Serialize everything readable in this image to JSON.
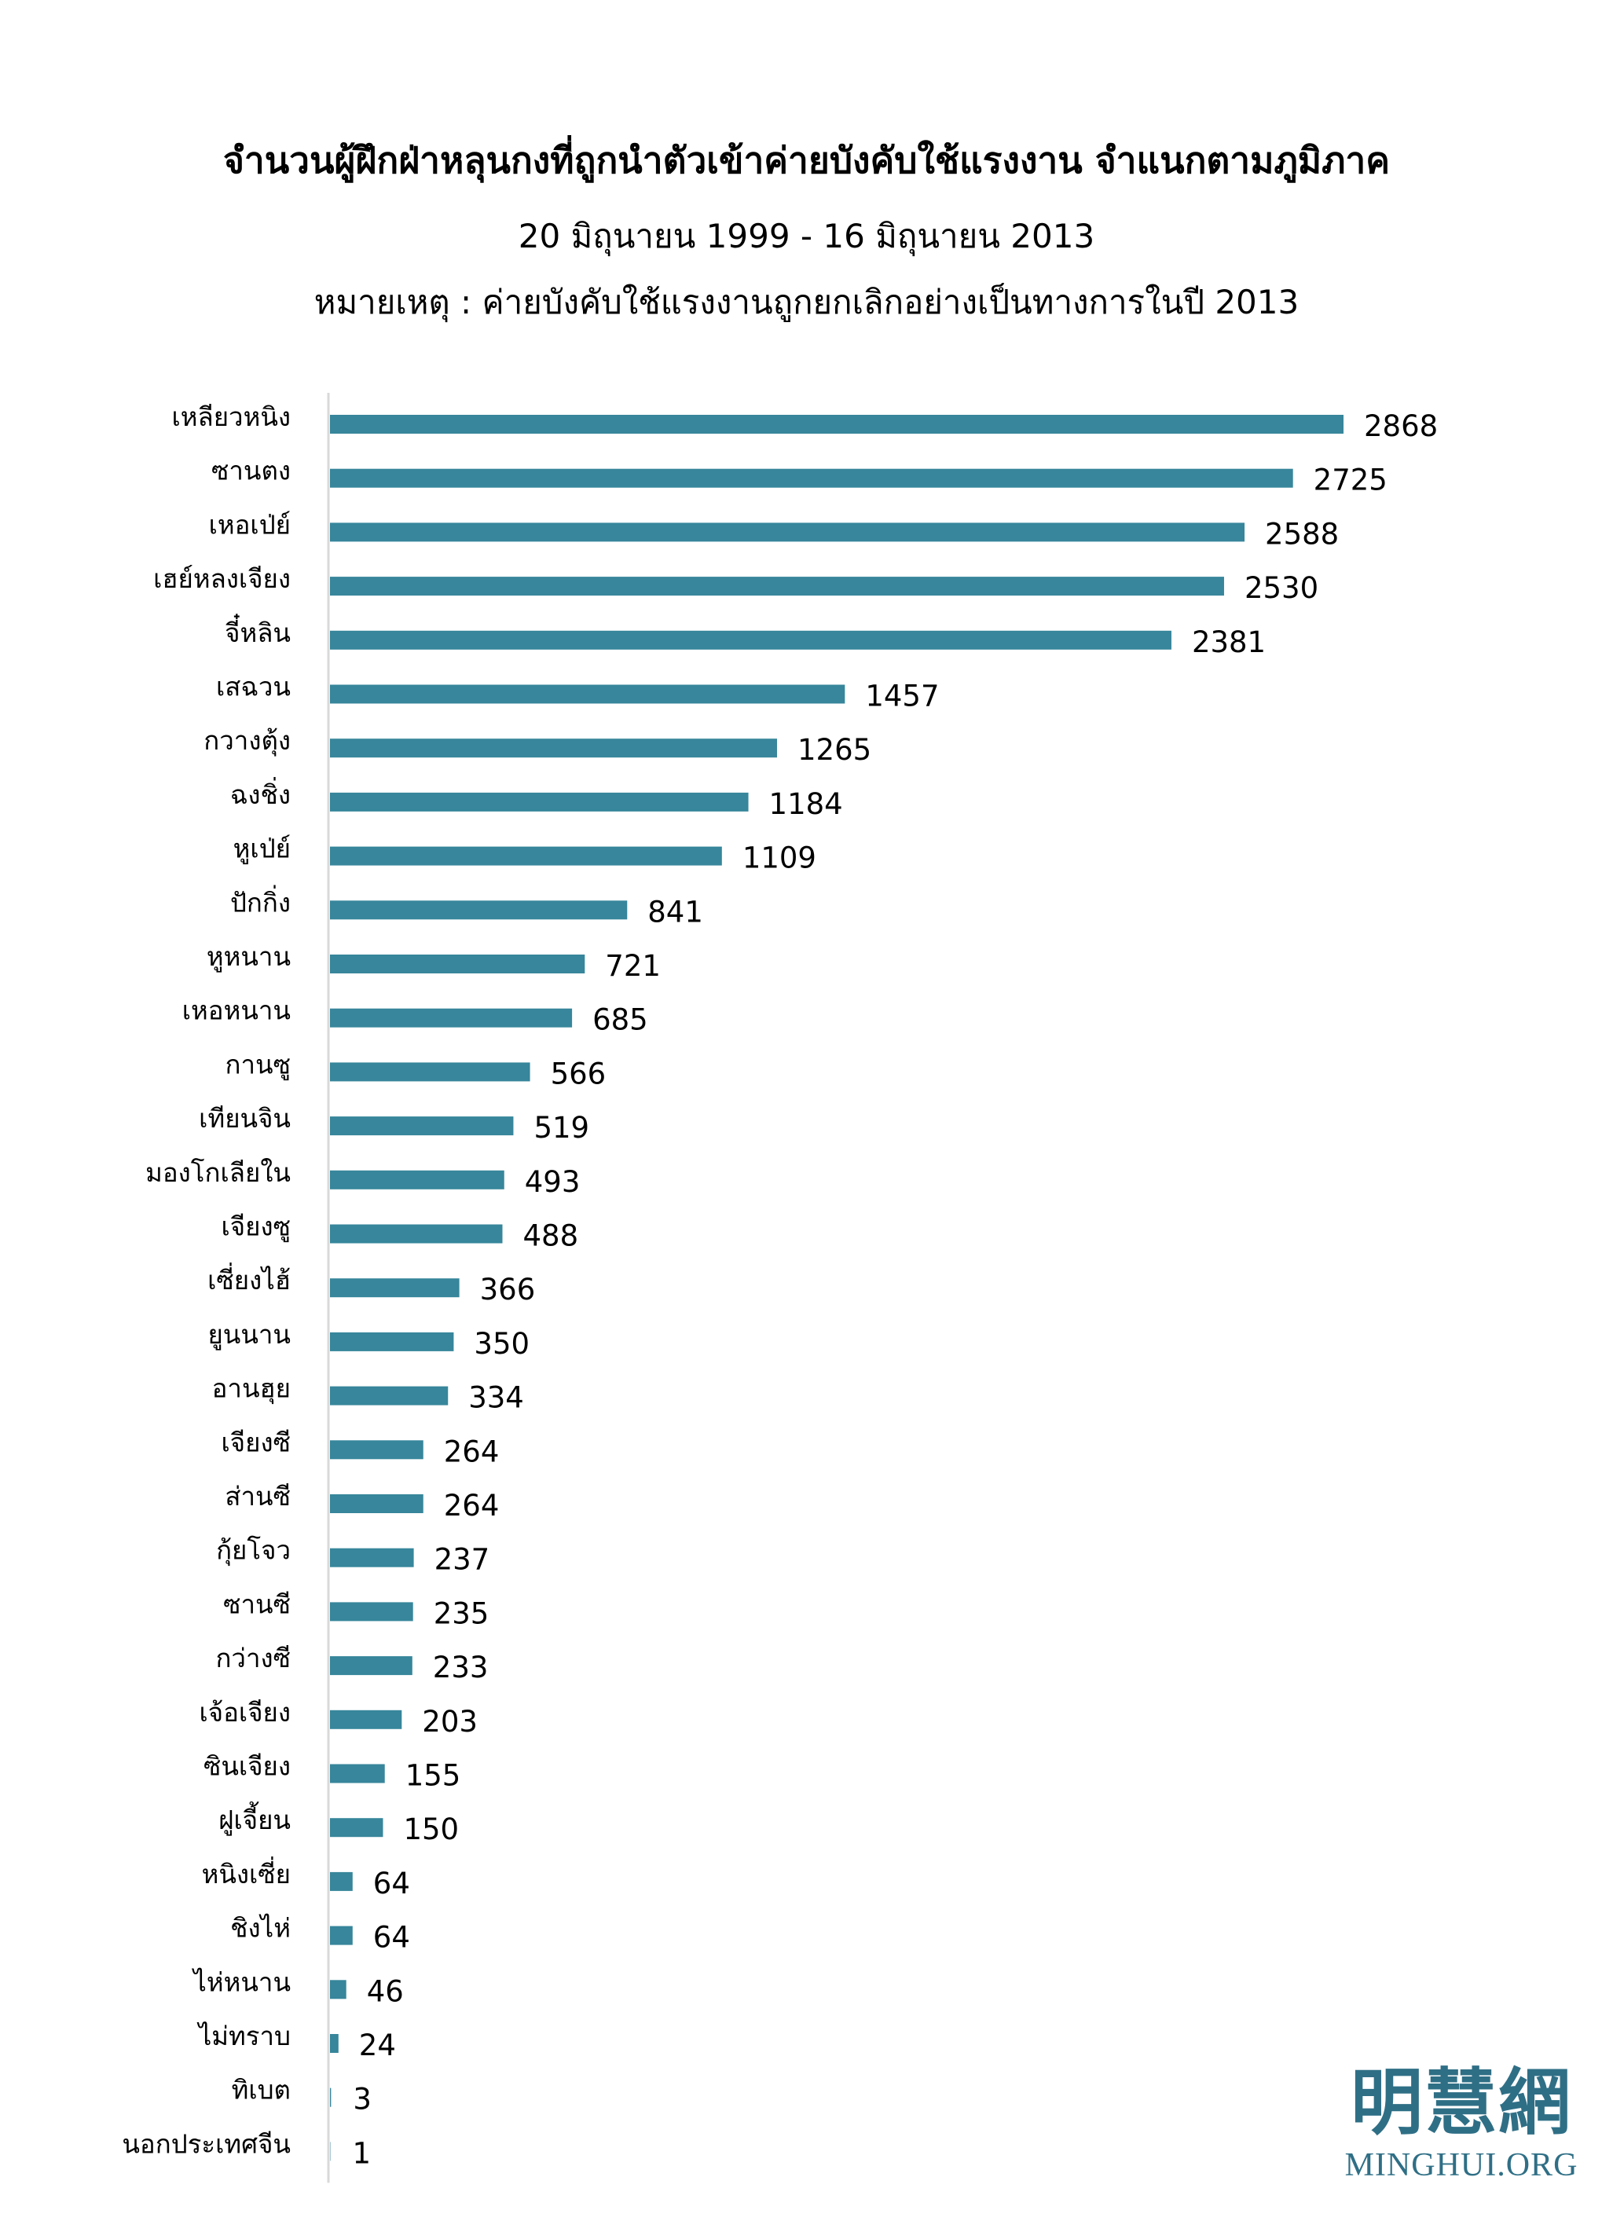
{
  "chart_data": {
    "type": "bar",
    "orientation": "horizontal",
    "title": "จำนวนผู้ฝึกฝ่าหลุนกงที่ถูกนำตัวเข้าค่ายบังคับใช้แรงงาน จำแนกตามภูมิภาค",
    "subtitle": "20 มิถุนายน 1999 - 16 มิถุนายน 2013",
    "note": "หมายเหตุ : ค่ายบังคับใช้แรงงานถูกยกเลิกอย่างเป็นทางการในปี 2013",
    "xlabel": "",
    "ylabel": "",
    "xlim": [
      0,
      2868
    ],
    "grid": false,
    "legend": "none",
    "bar_color": "#37869b",
    "data_labels": true,
    "categories": [
      "เหลียวหนิง",
      "ซานตง",
      "เหอเป่ย์",
      "เฮย์หลงเจียง",
      "จี๋หลิน",
      "เสฉวน",
      "กวางตุ้ง",
      "ฉงชิ่ง",
      "หูเป่ย์",
      "ปักกิ่ง",
      "หูหนาน",
      "เหอหนาน",
      "กานซู",
      "เทียนจิน",
      "มองโกเลียใน",
      "เจียงซู",
      "เซี่ยงไฮ้",
      "ยูนนาน",
      "อานฮุย",
      "เจียงซี",
      "ส่านซี",
      "กุ้ยโจว",
      "ซานซี",
      "กว่างซี",
      "เจ้อเจียง",
      "ซินเจียง",
      "ฝูเจี้ยน",
      "หนิงเซี่ย",
      "ชิงไห่",
      "ไห่หนาน",
      "ไม่ทราบ",
      "ทิเบต",
      "นอกประเทศจีน"
    ],
    "values": [
      2868,
      2725,
      2588,
      2530,
      2381,
      1457,
      1265,
      1184,
      1109,
      841,
      721,
      685,
      566,
      519,
      493,
      488,
      366,
      350,
      334,
      264,
      264,
      237,
      235,
      233,
      203,
      155,
      150,
      64,
      64,
      46,
      24,
      3,
      1
    ]
  },
  "logo": {
    "cjk": "明慧網",
    "en": "MINGHUI.ORG",
    "color": "#2f6f86"
  }
}
